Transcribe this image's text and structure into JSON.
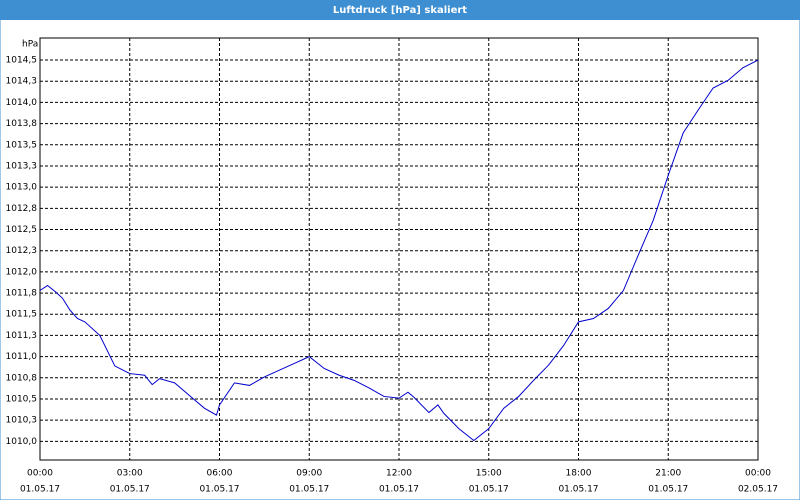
{
  "chart_data": {
    "type": "line",
    "title": "Luftdruck [hPa] skaliert",
    "y_unit": "hPa",
    "x": [
      0,
      0.25,
      0.5,
      0.75,
      1.0,
      1.25,
      1.5,
      2.0,
      2.5,
      3.0,
      3.5,
      3.75,
      4.0,
      4.5,
      5.0,
      5.5,
      5.9,
      6.0,
      6.5,
      7.0,
      7.5,
      8.0,
      8.5,
      9.0,
      9.5,
      10.0,
      10.5,
      11.0,
      11.5,
      12.0,
      12.3,
      12.5,
      13.0,
      13.3,
      13.5,
      14.0,
      14.5,
      15.0,
      15.5,
      16.0,
      16.5,
      17.0,
      17.5,
      18.0,
      18.5,
      19.0,
      19.5,
      20.0,
      20.5,
      21.0,
      21.5,
      22.0,
      22.5,
      23.0,
      23.5,
      24.0
    ],
    "series": [
      {
        "name": "Luftdruck",
        "color": "#0000cc",
        "values": [
          1011.78,
          1011.84,
          1011.77,
          1011.69,
          1011.55,
          1011.45,
          1011.41,
          1011.25,
          1010.89,
          1010.8,
          1010.78,
          1010.67,
          1010.74,
          1010.69,
          1010.54,
          1010.39,
          1010.31,
          1010.43,
          1010.69,
          1010.66,
          1010.76,
          1010.84,
          1010.92,
          1011.0,
          1010.86,
          1010.78,
          1010.72,
          1010.63,
          1010.53,
          1010.51,
          1010.58,
          1010.52,
          1010.34,
          1010.43,
          1010.33,
          1010.15,
          1010.01,
          1010.15,
          1010.39,
          1010.53,
          1010.72,
          1010.9,
          1011.13,
          1011.41,
          1011.45,
          1011.57,
          1011.78,
          1012.2,
          1012.61,
          1013.14,
          1013.64,
          1013.91,
          1014.17,
          1014.26,
          1014.41,
          1014.5
        ]
      }
    ],
    "xlim": [
      0,
      24
    ],
    "xticks": [
      {
        "value": 0,
        "label": "00:00"
      },
      {
        "value": 3,
        "label": "03:00"
      },
      {
        "value": 6,
        "label": "06:00"
      },
      {
        "value": 9,
        "label": "09:00"
      },
      {
        "value": 12,
        "label": "12:00"
      },
      {
        "value": 15,
        "label": "15:00"
      },
      {
        "value": 18,
        "label": "18:00"
      },
      {
        "value": 21,
        "label": "21:00"
      },
      {
        "value": 24,
        "label": "00:00"
      }
    ],
    "xtick_dates": [
      "01.05.17",
      "01.05.17",
      "01.05.17",
      "01.05.17",
      "01.05.17",
      "01.05.17",
      "01.05.17",
      "01.05.17",
      "02.05.17"
    ],
    "ylim": [
      1009.78,
      1014.76
    ],
    "yticks": [
      {
        "value": 1010.0,
        "label": "1010,0"
      },
      {
        "value": 1010.25,
        "label": "1010,3"
      },
      {
        "value": 1010.5,
        "label": "1010,5"
      },
      {
        "value": 1010.75,
        "label": "1010,8"
      },
      {
        "value": 1011.0,
        "label": "1011,0"
      },
      {
        "value": 1011.25,
        "label": "1011,3"
      },
      {
        "value": 1011.5,
        "label": "1011,5"
      },
      {
        "value": 1011.75,
        "label": "1011,8"
      },
      {
        "value": 1012.0,
        "label": "1012,0"
      },
      {
        "value": 1012.25,
        "label": "1012,3"
      },
      {
        "value": 1012.5,
        "label": "1012,5"
      },
      {
        "value": 1012.75,
        "label": "1012,8"
      },
      {
        "value": 1013.0,
        "label": "1013,0"
      },
      {
        "value": 1013.25,
        "label": "1013,3"
      },
      {
        "value": 1013.5,
        "label": "1013,5"
      },
      {
        "value": 1013.75,
        "label": "1013,8"
      },
      {
        "value": 1014.0,
        "label": "1014,0"
      },
      {
        "value": 1014.25,
        "label": "1014,3"
      },
      {
        "value": 1014.5,
        "label": "1014,5"
      }
    ],
    "grid": true
  }
}
